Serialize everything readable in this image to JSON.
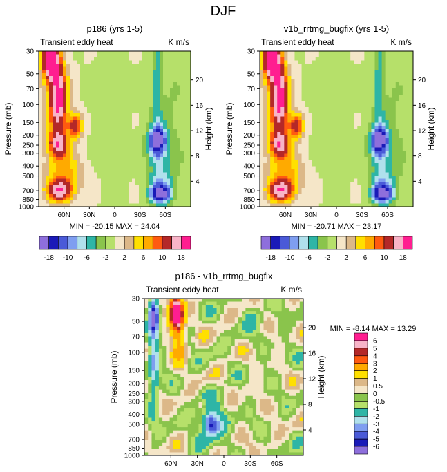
{
  "page_title": "DJF",
  "palettes": {
    "top": [
      "#8e6fdc",
      "#1a1ab8",
      "#4a5ad8",
      "#7f9ef0",
      "#b0e0ec",
      "#2eb5a6",
      "#8ac44c",
      "#b6e06a",
      "#f5e6c8",
      "#dcb888",
      "#ffe000",
      "#ffaa00",
      "#ff5a10",
      "#b42828",
      "#f8b4c8",
      "#ff1e90"
    ],
    "diff": [
      "#ff1e90",
      "#f8b4c8",
      "#b42828",
      "#ff5a10",
      "#ffaa00",
      "#ffe000",
      "#dcb888",
      "#f5e6c8",
      "#8ac44c",
      "#b6e06a",
      "#2eb5a6",
      "#b0e0ec",
      "#7f9ef0",
      "#4a5ad8",
      "#1a1ab8",
      "#8e6fdc"
    ]
  },
  "chart_data": [
    {
      "type": "heatmap",
      "title": "p186 (yrs 1-5)",
      "left_string": "Transient eddy heat",
      "right_string": "K m/s",
      "ylabel": "Pressure (mb)",
      "y2label": "Height (km)",
      "x_ticks": [
        "60N",
        "30N",
        "0",
        "30S",
        "60S"
      ],
      "x_values": [
        60,
        30,
        0,
        -30,
        -60
      ],
      "xlim": [
        90,
        -90
      ],
      "y_ticks": [
        "30",
        "50",
        "70",
        "100",
        "150",
        "200",
        "250",
        "300",
        "400",
        "500",
        "700",
        "850",
        "1000"
      ],
      "y_values": [
        30,
        50,
        70,
        100,
        150,
        200,
        250,
        300,
        400,
        500,
        700,
        850,
        1000
      ],
      "ylim": [
        30,
        1000
      ],
      "y2_ticks": [
        "20",
        "16",
        "12",
        "8",
        "4"
      ],
      "y2_values": [
        20,
        16,
        12,
        8,
        4
      ],
      "min_max_label": "MIN = -20.15  MAX = 24.04",
      "levels": [
        "-18",
        "-10",
        "-6",
        "-2",
        "2",
        "6",
        "10",
        "18"
      ]
    },
    {
      "type": "heatmap",
      "title": "v1b_rrtmg_bugfix (yrs 1-5)",
      "left_string": "Transient eddy heat",
      "right_string": "K m/s",
      "ylabel": "Pressure (mb)",
      "y2label": "Height (km)",
      "x_ticks": [
        "60N",
        "30N",
        "0",
        "30S",
        "60S"
      ],
      "x_values": [
        60,
        30,
        0,
        -30,
        -60
      ],
      "xlim": [
        90,
        -90
      ],
      "y_ticks": [
        "30",
        "50",
        "70",
        "100",
        "150",
        "200",
        "250",
        "300",
        "400",
        "500",
        "700",
        "850",
        "1000"
      ],
      "y_values": [
        30,
        50,
        70,
        100,
        150,
        200,
        250,
        300,
        400,
        500,
        700,
        850,
        1000
      ],
      "ylim": [
        30,
        1000
      ],
      "y2_ticks": [
        "20",
        "16",
        "12",
        "8",
        "4"
      ],
      "y2_values": [
        20,
        16,
        12,
        8,
        4
      ],
      "min_max_label": "MIN = -20.71  MAX = 23.17",
      "levels": [
        "-18",
        "-10",
        "-6",
        "-2",
        "2",
        "6",
        "10",
        "18"
      ]
    },
    {
      "type": "heatmap",
      "title": "p186 - v1b_rrtmg_bugfix",
      "left_string": "Transient eddy heat",
      "right_string": "K m/s",
      "ylabel": "Pressure (mb)",
      "y2label": "Height (km)",
      "x_ticks": [
        "60N",
        "30N",
        "0",
        "30S",
        "60S"
      ],
      "x_values": [
        60,
        30,
        0,
        -30,
        -60
      ],
      "xlim": [
        90,
        -90
      ],
      "y_ticks": [
        "30",
        "50",
        "70",
        "100",
        "150",
        "200",
        "250",
        "300",
        "400",
        "500",
        "700",
        "850",
        "1000"
      ],
      "y_values": [
        30,
        50,
        70,
        100,
        150,
        200,
        250,
        300,
        400,
        500,
        700,
        850,
        1000
      ],
      "ylim": [
        30,
        1000
      ],
      "y2_ticks": [
        "20",
        "16",
        "12",
        "8",
        "4"
      ],
      "y2_values": [
        20,
        16,
        12,
        8,
        4
      ],
      "min_max_label": "MIN =  -8.14  MAX =  13.29",
      "levels": [
        "6",
        "5",
        "4",
        "3",
        "2",
        "1",
        "0.5",
        "0",
        "-0.5",
        "-1",
        "-2",
        "-3",
        "-4",
        "-5",
        "-6"
      ]
    }
  ]
}
